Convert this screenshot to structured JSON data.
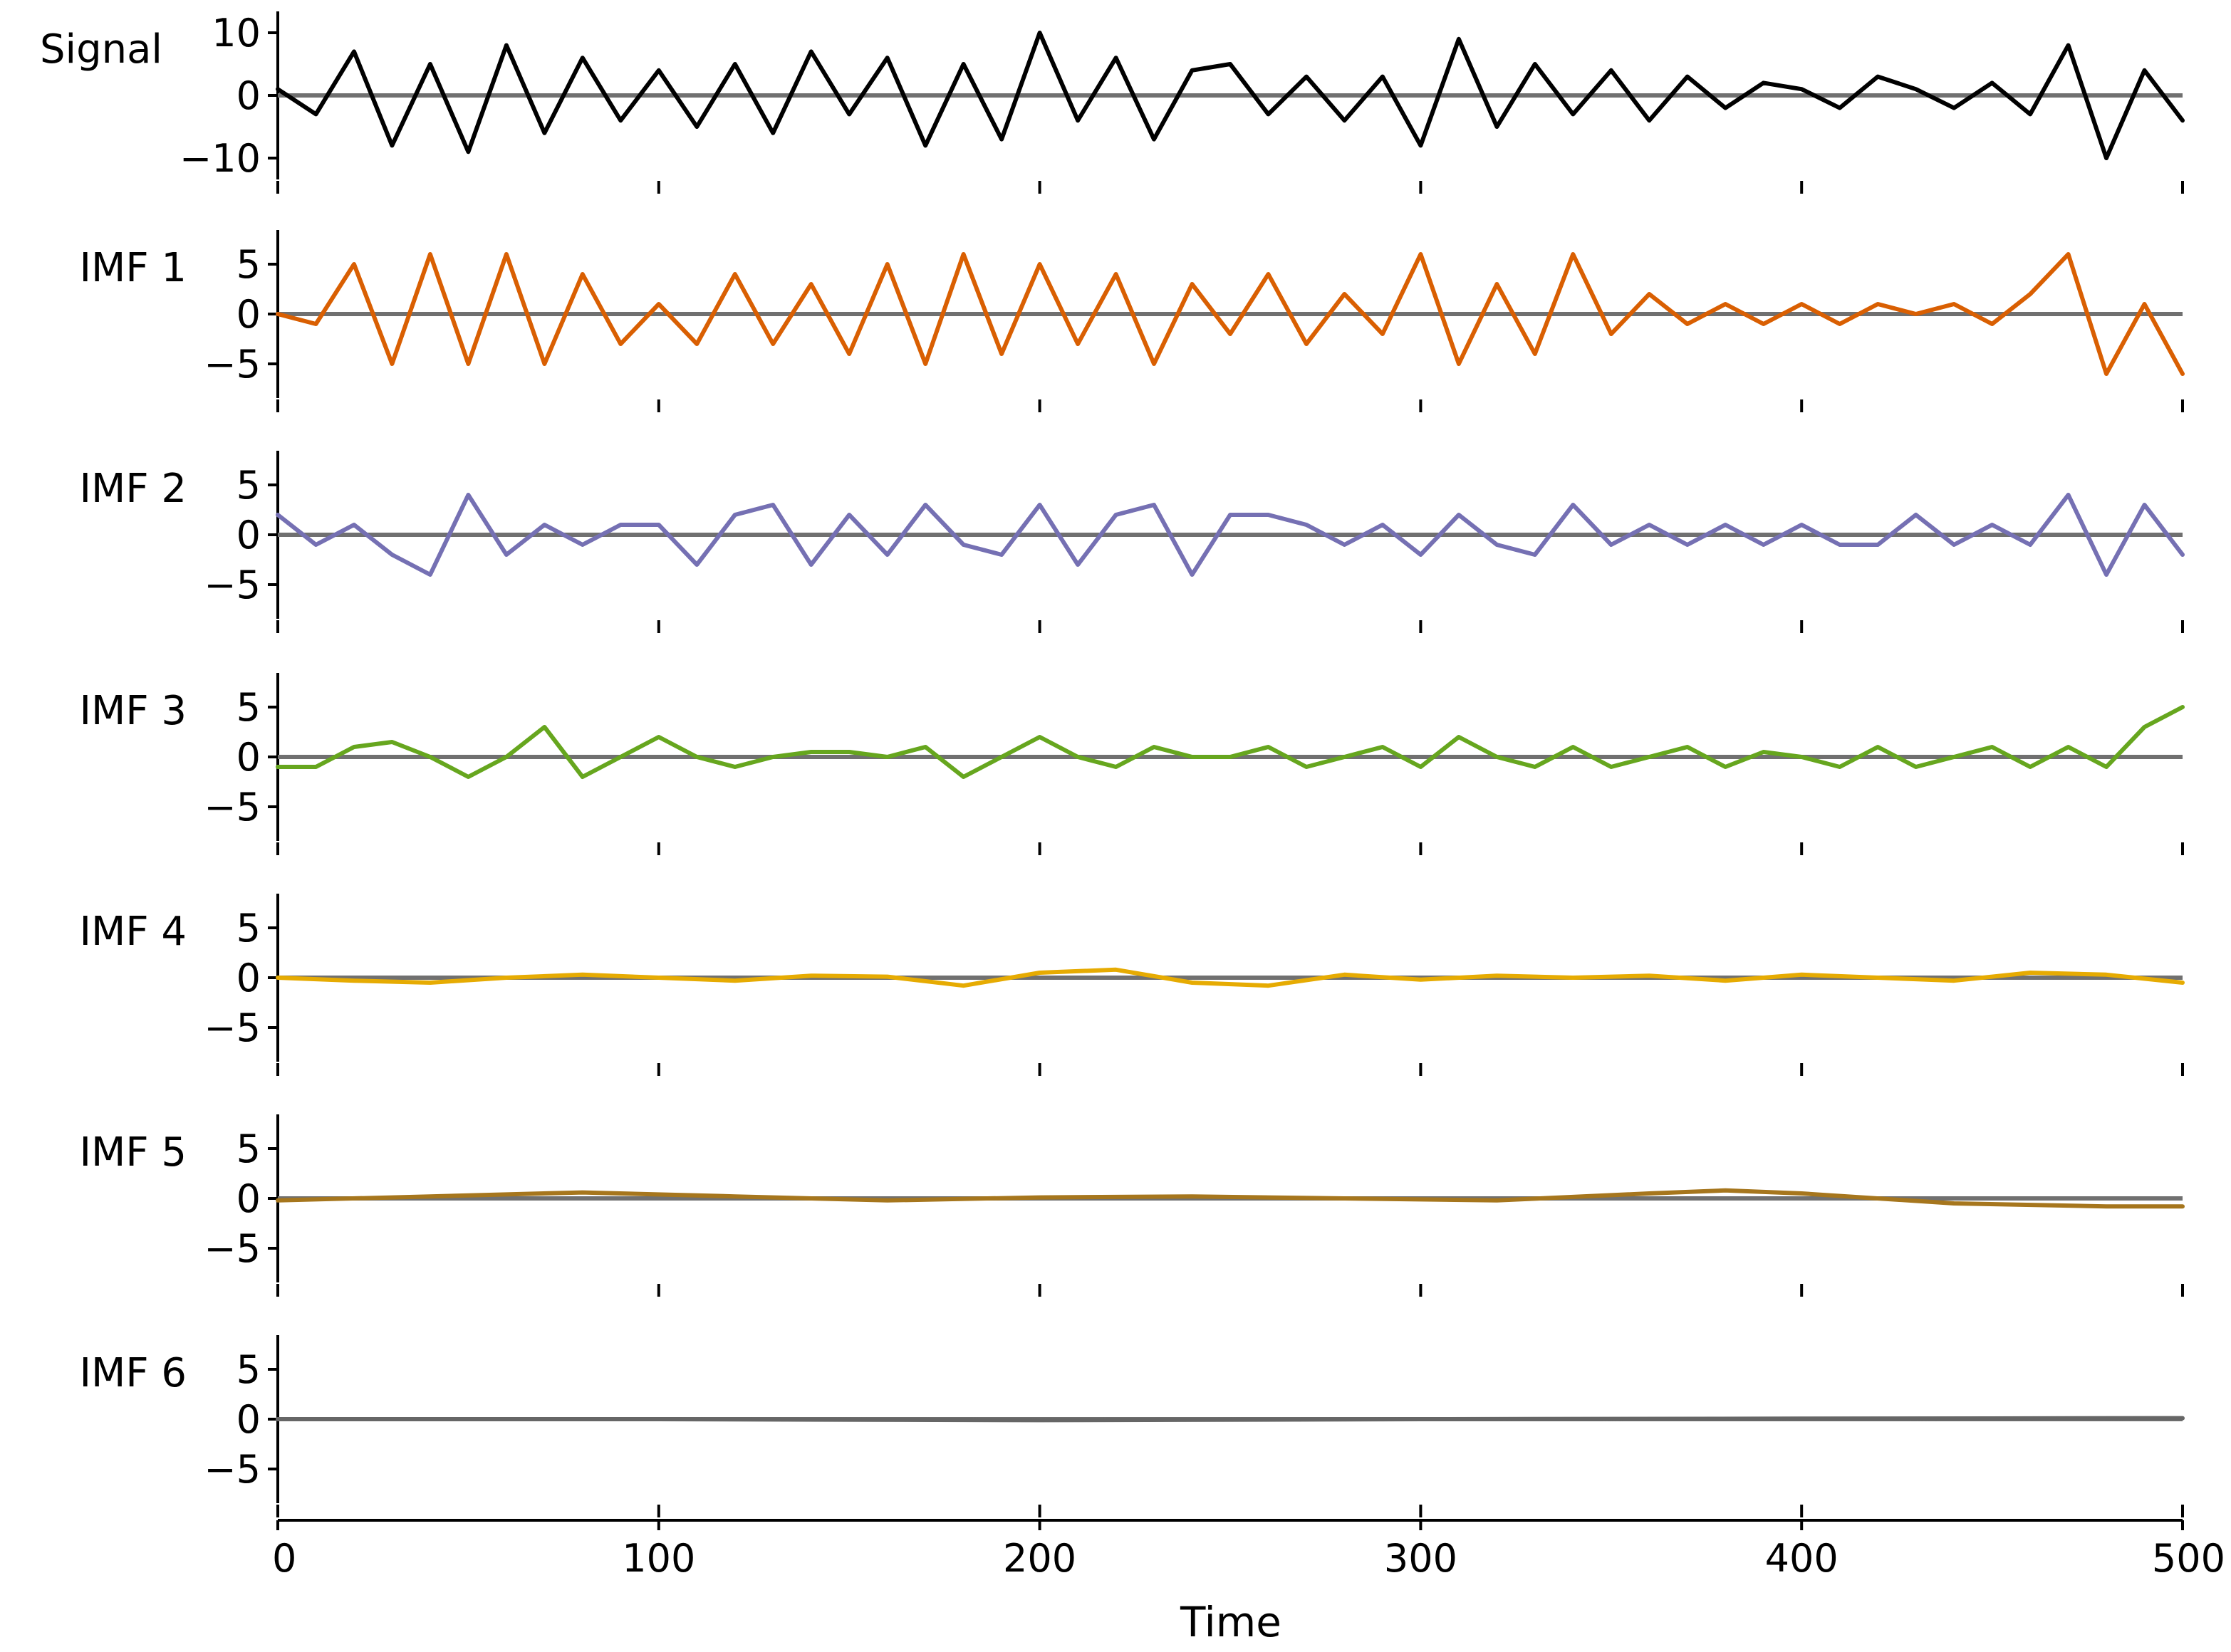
{
  "chart_data": {
    "type": "line",
    "layout": "stacked-subplots",
    "xlabel": "Time",
    "xlim": [
      0,
      500
    ],
    "xticks": [
      0,
      100,
      200,
      300,
      400,
      500
    ],
    "xtick_labels": [
      "0",
      "100",
      "200",
      "300",
      "400",
      "500"
    ],
    "zero_line_color": "#707070",
    "panels": [
      {
        "ylabel": "Signal",
        "ylim": [
          -10,
          10
        ],
        "yticks": [
          10,
          0,
          -10
        ],
        "ytick_labels": [
          "10",
          "0",
          "−10"
        ],
        "color": "#000000",
        "x": [
          0,
          10,
          20,
          30,
          40,
          50,
          60,
          70,
          80,
          90,
          100,
          110,
          120,
          130,
          140,
          150,
          160,
          170,
          180,
          190,
          200,
          210,
          220,
          230,
          240,
          250,
          260,
          270,
          280,
          290,
          300,
          310,
          320,
          330,
          340,
          350,
          360,
          370,
          380,
          390,
          400,
          410,
          420,
          430,
          440,
          450,
          460,
          470,
          480,
          490,
          500
        ],
        "values": [
          1,
          -3,
          7,
          -8,
          5,
          -9,
          8,
          -6,
          6,
          -4,
          4,
          -5,
          5,
          -6,
          7,
          -3,
          6,
          -8,
          5,
          -7,
          10,
          -4,
          6,
          -7,
          4,
          5,
          -3,
          3,
          -4,
          3,
          -8,
          9,
          -5,
          5,
          -3,
          4,
          -4,
          3,
          -2,
          2,
          1,
          -2,
          3,
          1,
          -2,
          2,
          -3,
          8,
          -10,
          4,
          -4
        ]
      },
      {
        "ylabel": "IMF 1",
        "ylim": [
          -8,
          8
        ],
        "yticks": [
          5,
          0,
          -5
        ],
        "ytick_labels": [
          "5",
          "0",
          "−5"
        ],
        "color": "#d95f02",
        "x": [
          0,
          10,
          20,
          30,
          40,
          50,
          60,
          70,
          80,
          90,
          100,
          110,
          120,
          130,
          140,
          150,
          160,
          170,
          180,
          190,
          200,
          210,
          220,
          230,
          240,
          250,
          260,
          270,
          280,
          290,
          300,
          310,
          320,
          330,
          340,
          350,
          360,
          370,
          380,
          390,
          400,
          410,
          420,
          430,
          440,
          450,
          460,
          470,
          480,
          490,
          500
        ],
        "values": [
          0,
          -1,
          5,
          -5,
          6,
          -5,
          6,
          -5,
          4,
          -3,
          1,
          -3,
          4,
          -3,
          3,
          -4,
          5,
          -5,
          6,
          -4,
          5,
          -3,
          4,
          -5,
          3,
          -2,
          4,
          -3,
          2,
          -2,
          6,
          -5,
          3,
          -4,
          6,
          -2,
          2,
          -1,
          1,
          -1,
          1,
          -1,
          1,
          0,
          1,
          -1,
          2,
          6,
          -6,
          1,
          -6
        ]
      },
      {
        "ylabel": "IMF 2",
        "ylim": [
          -8,
          8
        ],
        "yticks": [
          5,
          0,
          -5
        ],
        "ytick_labels": [
          "5",
          "0",
          "−5"
        ],
        "color": "#7570b3",
        "x": [
          0,
          10,
          20,
          30,
          40,
          50,
          60,
          70,
          80,
          90,
          100,
          110,
          120,
          130,
          140,
          150,
          160,
          170,
          180,
          190,
          200,
          210,
          220,
          230,
          240,
          250,
          260,
          270,
          280,
          290,
          300,
          310,
          320,
          330,
          340,
          350,
          360,
          370,
          380,
          390,
          400,
          410,
          420,
          430,
          440,
          450,
          460,
          470,
          480,
          490,
          500
        ],
        "values": [
          2,
          -1,
          1,
          -2,
          -4,
          4,
          -2,
          1,
          -1,
          1,
          1,
          -3,
          2,
          3,
          -3,
          2,
          -2,
          3,
          -1,
          -2,
          3,
          -3,
          2,
          3,
          -4,
          2,
          2,
          1,
          -1,
          1,
          -2,
          2,
          -1,
          -2,
          3,
          -1,
          1,
          -1,
          1,
          -1,
          1,
          -1,
          -1,
          2,
          -1,
          1,
          -1,
          4,
          -4,
          3,
          -2
        ]
      },
      {
        "ylabel": "IMF 3",
        "ylim": [
          -8,
          8
        ],
        "yticks": [
          5,
          0,
          -5
        ],
        "ytick_labels": [
          "5",
          "0",
          "−5"
        ],
        "color": "#66a61e",
        "x": [
          0,
          10,
          20,
          30,
          40,
          50,
          60,
          70,
          80,
          90,
          100,
          110,
          120,
          130,
          140,
          150,
          160,
          170,
          180,
          190,
          200,
          210,
          220,
          230,
          240,
          250,
          260,
          270,
          280,
          290,
          300,
          310,
          320,
          330,
          340,
          350,
          360,
          370,
          380,
          390,
          400,
          410,
          420,
          430,
          440,
          450,
          460,
          470,
          480,
          490,
          500
        ],
        "values": [
          -1,
          -1,
          1,
          1.5,
          0,
          -2,
          0,
          3,
          -2,
          0,
          2,
          0,
          -1,
          0,
          0.5,
          0.5,
          0,
          1,
          -2,
          0,
          2,
          0,
          -1,
          1,
          0,
          0,
          1,
          -1,
          0,
          1,
          -1,
          2,
          0,
          -1,
          1,
          -1,
          0,
          1,
          -1,
          0.5,
          0,
          -1,
          1,
          -1,
          0,
          1,
          -1,
          1,
          -1,
          3,
          5
        ]
      },
      {
        "ylabel": "IMF 4",
        "ylim": [
          -8,
          8
        ],
        "yticks": [
          5,
          0,
          -5
        ],
        "ytick_labels": [
          "5",
          "0",
          "−5"
        ],
        "color": "#e6ab02",
        "x": [
          0,
          20,
          40,
          60,
          80,
          100,
          120,
          140,
          160,
          180,
          200,
          220,
          240,
          260,
          280,
          300,
          320,
          340,
          360,
          380,
          400,
          420,
          440,
          460,
          480,
          500
        ],
        "values": [
          0,
          -0.3,
          -0.5,
          0,
          0.3,
          0,
          -0.3,
          0.2,
          0.1,
          -0.8,
          0.5,
          0.8,
          -0.5,
          -0.8,
          0.3,
          -0.2,
          0.2,
          0,
          0.2,
          -0.3,
          0.3,
          0,
          -0.3,
          0.5,
          0.3,
          -0.5
        ]
      },
      {
        "ylabel": "IMF 5",
        "ylim": [
          -8,
          8
        ],
        "yticks": [
          5,
          0,
          -5
        ],
        "ytick_labels": [
          "5",
          "0",
          "−5"
        ],
        "color": "#a6761d",
        "x": [
          0,
          40,
          80,
          120,
          160,
          200,
          240,
          280,
          320,
          360,
          380,
          400,
          440,
          480,
          500
        ],
        "values": [
          -0.2,
          0.2,
          0.6,
          0.2,
          -0.2,
          0.1,
          0.2,
          0,
          -0.2,
          0.5,
          0.8,
          0.5,
          -0.5,
          -0.8,
          -0.8
        ]
      },
      {
        "ylabel": "IMF 6",
        "ylim": [
          -8,
          8
        ],
        "yticks": [
          5,
          0,
          -5
        ],
        "ytick_labels": [
          "5",
          "0",
          "−5"
        ],
        "color": "#666666",
        "x": [
          0,
          100,
          200,
          300,
          400,
          500
        ],
        "values": [
          0,
          0,
          -0.1,
          0,
          0.05,
          0.1
        ]
      }
    ]
  }
}
